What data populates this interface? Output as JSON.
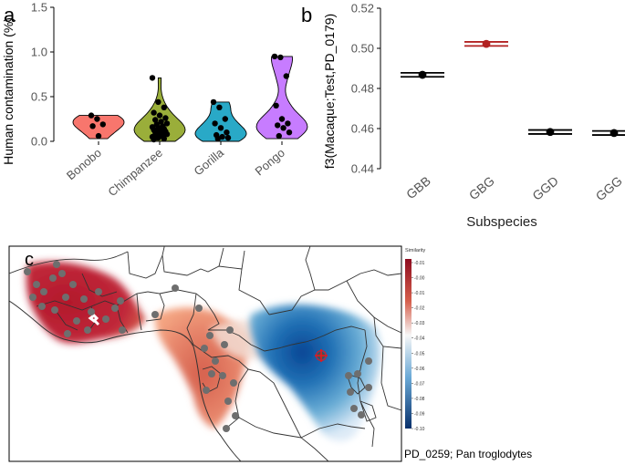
{
  "panels": {
    "a": {
      "label": "a",
      "chart_data": {
        "type": "violin",
        "ylabel": "Human contamination (%)",
        "xlabel": "",
        "ylim": [
          0,
          1.5
        ],
        "yticks": [
          "0.0",
          "0.5",
          "1.0",
          "1.5"
        ],
        "ytick_values": [
          0,
          0.5,
          1.0,
          1.5
        ],
        "categories": [
          "Bonobo",
          "Chimpanzee",
          "Gorilla",
          "Pongo"
        ],
        "fills": [
          "#f8766d",
          "#9aae3a",
          "#29a9c7",
          "#c77cff"
        ],
        "points": [
          [
            0.29,
            0.25,
            0.19,
            0.17,
            0.06
          ],
          [
            0.71,
            0.44,
            0.38,
            0.32,
            0.29,
            0.26,
            0.24,
            0.22,
            0.2,
            0.19,
            0.17,
            0.16,
            0.15,
            0.14,
            0.13,
            0.12,
            0.11,
            0.1,
            0.09,
            0.08,
            0.07,
            0.06,
            0.05,
            0.04,
            0.03,
            0.02
          ],
          [
            0.44,
            0.38,
            0.25,
            0.2,
            0.15,
            0.1,
            0.07,
            0.05,
            0.04,
            0.03
          ],
          [
            0.95,
            0.94,
            0.73,
            0.4,
            0.25,
            0.2,
            0.18,
            0.15,
            0.1,
            0.06
          ]
        ]
      }
    },
    "b": {
      "label": "b",
      "chart_data": {
        "type": "errorbar-points",
        "ylabel": "f3(Macaque;Test,PD_0179)",
        "xlabel": "Subspecies",
        "ylim": [
          0.44,
          0.52
        ],
        "yticks": [
          "0.44",
          "0.46",
          "0.48",
          "0.50",
          "0.52"
        ],
        "ytick_values": [
          0.44,
          0.46,
          0.48,
          0.5,
          0.52
        ],
        "categories": [
          "GBB",
          "GBG",
          "GGD",
          "GGG"
        ],
        "values": [
          0.4868,
          0.5022,
          0.4583,
          0.4578
        ],
        "error": [
          0.001,
          0.001,
          0.001,
          0.001
        ],
        "colors": [
          "#000000",
          "#b22222",
          "#000000",
          "#000000"
        ]
      }
    },
    "c": {
      "label": "c",
      "caption": "PD_0259; Pan troglodytes",
      "legend_title": "Similarity",
      "legend_ticks": [
        "0.01",
        "0.00",
        "0.01",
        "0.02",
        "0.03",
        "0.04",
        "0.05",
        "0.06",
        "0.07",
        "0.08",
        "0.09",
        "0.10"
      ],
      "legend_prefixes": [
        "-",
        "-",
        "-",
        "-",
        "-",
        "-",
        "-",
        "-",
        "-",
        "-",
        "-",
        "-"
      ],
      "colors": {
        "high": "#a50f15",
        "mid": "#f7f7f7",
        "low": "#08519c",
        "sample": "#6e6e6e",
        "target": "#e41a1c"
      }
    }
  }
}
